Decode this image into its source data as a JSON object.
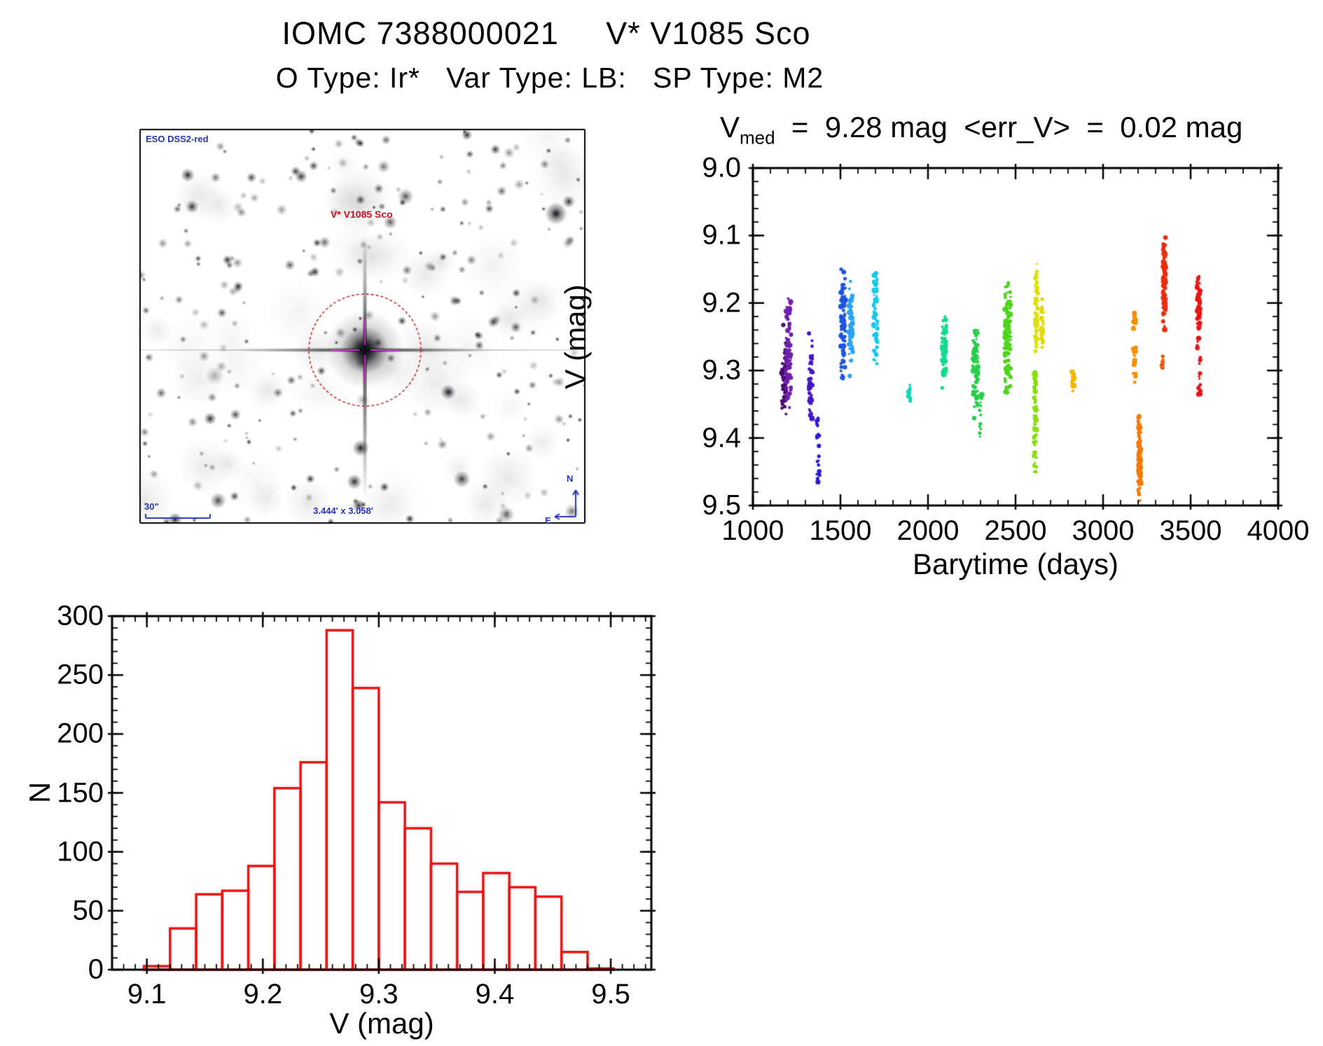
{
  "header": {
    "title": "IOMC 7388000021     V* V1085 Sco",
    "subtitle": "O Type: Ir*   Var Type: LB:   SP Type: M2"
  },
  "stats": {
    "v_base": "V",
    "v_sub": "med",
    "v_rest": "  =  9.28 mag  <err_V>  =  0.02 mag"
  },
  "image_panel": {
    "survey_label": "ESO DSS2-red",
    "star_label": "V* V1085 Sco",
    "scale_label": "30\"",
    "fov_label": "3.444' x 3.058'",
    "compass_north": "N",
    "compass_east": "E",
    "annotation_blue": "#2534b8",
    "annotation_red": "#cc1122",
    "circle_color": "#cc1111",
    "crosshair_color": "#c832c8"
  },
  "chart_data": [
    {
      "type": "scatter",
      "xlabel": "Barytime (days)",
      "ylabel": "V (mag)",
      "xlim": [
        1000,
        4000
      ],
      "ylim": [
        9.5,
        9.0
      ],
      "x_tick_labels": [
        "1000",
        "1500",
        "2000",
        "2500",
        "3000",
        "3500",
        "4000"
      ],
      "x_major_ticks": [
        1000,
        1500,
        2000,
        2500,
        3000,
        3500,
        4000
      ],
      "x_minor_step": 100,
      "y_tick_labels": [
        "9.0",
        "9.1",
        "9.2",
        "9.3",
        "9.4",
        "9.5"
      ],
      "y_major_ticks": [
        9.0,
        9.1,
        9.2,
        9.3,
        9.4,
        9.5
      ],
      "y_minor_step": 0.02,
      "point_color_map": "rainbow-by-time",
      "clusters": [
        {
          "t": 1178,
          "dt": 10,
          "v_lo": 9.23,
          "v_hi": 9.38,
          "n": 50,
          "color": "#4a0d72"
        },
        {
          "t": 1204,
          "dt": 12,
          "v_lo": 9.17,
          "v_hi": 9.36,
          "n": 75,
          "color": "#6e20aa"
        },
        {
          "t": 1330,
          "dt": 9,
          "v_lo": 9.23,
          "v_hi": 9.38,
          "n": 48,
          "color": "#4617c9"
        },
        {
          "t": 1372,
          "dt": 6,
          "v_lo": 9.36,
          "v_hi": 9.48,
          "n": 20,
          "color": "#2b1bd6",
          "uniform": true
        },
        {
          "t": 1515,
          "dt": 11,
          "v_lo": 9.13,
          "v_hi": 9.33,
          "n": 90,
          "color": "#1d55e0"
        },
        {
          "t": 1560,
          "dt": 9,
          "v_lo": 9.15,
          "v_hi": 9.32,
          "n": 55,
          "color": "#2da1f2"
        },
        {
          "t": 1700,
          "dt": 9,
          "v_lo": 9.13,
          "v_hi": 9.3,
          "n": 60,
          "color": "#15c9ec"
        },
        {
          "t": 1892,
          "dt": 6,
          "v_lo": 9.32,
          "v_hi": 9.35,
          "n": 12,
          "color": "#10d6b2"
        },
        {
          "t": 2092,
          "dt": 11,
          "v_lo": 9.21,
          "v_hi": 9.33,
          "n": 65,
          "color": "#14da8c"
        },
        {
          "t": 2270,
          "dt": 13,
          "v_lo": 9.22,
          "v_hi": 9.38,
          "n": 70,
          "color": "#27cf49"
        },
        {
          "t": 2300,
          "dt": 6,
          "v_lo": 9.33,
          "v_hi": 9.4,
          "n": 15,
          "color": "#27cf49",
          "uniform": true
        },
        {
          "t": 2455,
          "dt": 15,
          "v_lo": 9.16,
          "v_hi": 9.35,
          "n": 100,
          "color": "#4fd41b"
        },
        {
          "t": 2612,
          "dt": 6,
          "v_lo": 9.3,
          "v_hi": 9.46,
          "n": 55,
          "color": "#8ade10",
          "uniform": true
        },
        {
          "t": 2620,
          "dt": 6,
          "v_lo": 9.13,
          "v_hi": 9.28,
          "n": 60,
          "color": "#dde00d"
        },
        {
          "t": 2652,
          "dt": 5,
          "v_lo": 9.19,
          "v_hi": 9.28,
          "n": 22,
          "color": "#e3da0b"
        },
        {
          "t": 2830,
          "dt": 5,
          "v_lo": 9.29,
          "v_hi": 9.34,
          "n": 14,
          "color": "#f2b604"
        },
        {
          "t": 3180,
          "dt": 6,
          "v_lo": 9.21,
          "v_hi": 9.32,
          "n": 28,
          "color": "#f2900c",
          "uniform": true
        },
        {
          "t": 3208,
          "dt": 7,
          "v_lo": 9.35,
          "v_hi": 9.5,
          "n": 110,
          "color": "#f27a08"
        },
        {
          "t": 3338,
          "dt": 4,
          "v_lo": 9.27,
          "v_hi": 9.31,
          "n": 10,
          "color": "#ee5a10"
        },
        {
          "t": 3350,
          "dt": 6,
          "v_lo": 9.09,
          "v_hi": 9.25,
          "n": 95,
          "color": "#e92d0e"
        },
        {
          "t": 3545,
          "dt": 7,
          "v_lo": 9.15,
          "v_hi": 9.27,
          "n": 60,
          "color": "#e61616"
        },
        {
          "t": 3552,
          "dt": 5,
          "v_lo": 9.28,
          "v_hi": 9.34,
          "n": 16,
          "color": "#e61616",
          "uniform": true
        }
      ]
    },
    {
      "type": "bar",
      "xlabel": "V (mag)",
      "ylabel": "N",
      "xlim": [
        9.07,
        9.535
      ],
      "ylim": [
        0,
        300
      ],
      "x_tick_labels": [
        "9.1",
        "9.2",
        "9.3",
        "9.4",
        "9.5"
      ],
      "x_major_ticks": [
        9.1,
        9.2,
        9.3,
        9.4,
        9.5
      ],
      "x_minor_step": 0.01,
      "y_tick_labels": [
        "0",
        "50",
        "100",
        "150",
        "200",
        "250",
        "300"
      ],
      "y_major_ticks": [
        0,
        50,
        100,
        150,
        200,
        250,
        300
      ],
      "y_minor_step": 10,
      "bar_color": "#ee1111",
      "bin_start": 9.0975,
      "bin_width": 0.0225,
      "counts": [
        3,
        35,
        64,
        67,
        88,
        154,
        176,
        288,
        239,
        142,
        120,
        90,
        66,
        82,
        70,
        62,
        15,
        1
      ]
    }
  ]
}
